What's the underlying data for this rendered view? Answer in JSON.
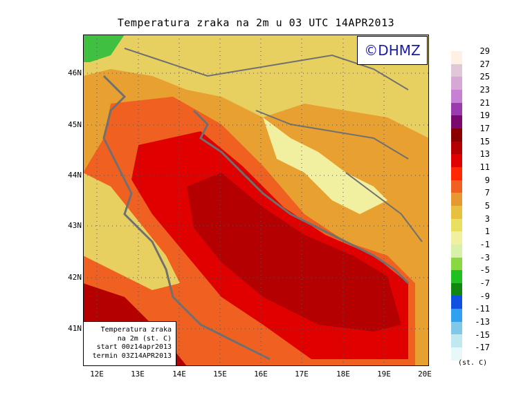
{
  "title": "Temperatura zraka na 2m u 03 UTC 14APR2013",
  "copyright": "©DHMZ",
  "legend": {
    "line1": "Temperatura zraka",
    "line2": "na 2m (st. C)",
    "line3": "start 00z14apr2013",
    "line4": "termin 03Z14APR2013"
  },
  "lat_ticks": [
    "46N",
    "45N",
    "44N",
    "43N",
    "42N",
    "41N"
  ],
  "lon_ticks": [
    "12E",
    "13E",
    "14E",
    "15E",
    "16E",
    "17E",
    "18E",
    "19E",
    "20E"
  ],
  "colorbar": {
    "unit": "(st. C)",
    "labels": [
      "29",
      "27",
      "25",
      "23",
      "21",
      "19",
      "17",
      "15",
      "13",
      "11",
      "9",
      "7",
      "5",
      "3",
      "1",
      "-1",
      "-3",
      "-5",
      "-7",
      "-9",
      "-11",
      "-13",
      "-15",
      "-17"
    ],
    "colors": [
      "#fff0e6",
      "#e0c8d8",
      "#d6a8d6",
      "#c880d4",
      "#9a3cb0",
      "#7a0a6e",
      "#8a0000",
      "#b40000",
      "#e00000",
      "#ff2800",
      "#f06020",
      "#e89830",
      "#e8c040",
      "#e8e060",
      "#f0f0a0",
      "#d8f0a8",
      "#88d840",
      "#20c020",
      "#108810",
      "#1050e0",
      "#30a0f0",
      "#80c8e8",
      "#c0e8f0",
      "#e8f8f8"
    ]
  }
}
